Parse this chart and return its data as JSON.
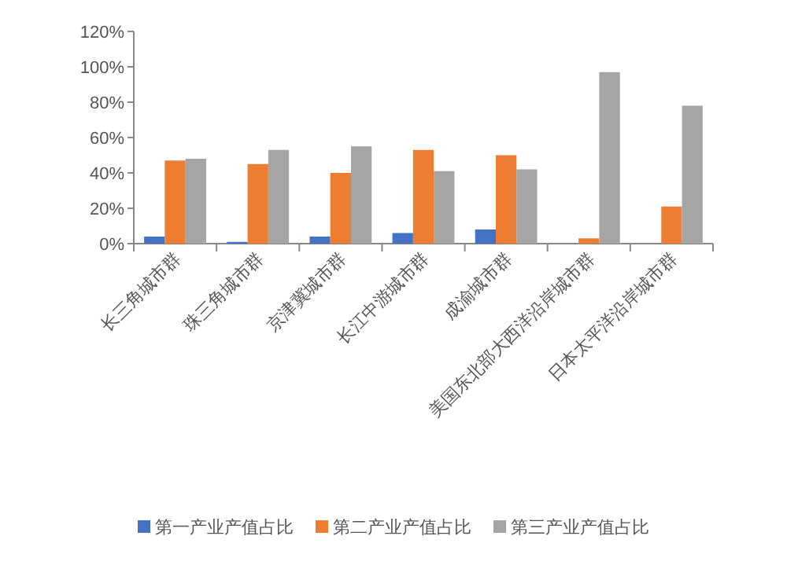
{
  "chart_data": {
    "type": "bar",
    "categories": [
      "长三角城市群",
      "珠三角城市群",
      "京津冀城市群",
      "长江中游城市群",
      "成渝城市群",
      "美国东北部大西洋沿岸城市群",
      "日本太平洋沿岸城市群"
    ],
    "series": [
      {
        "name": "第一产业产值占比",
        "color": "#4472c4",
        "values": [
          4,
          1,
          4,
          6,
          8,
          null,
          null
        ]
      },
      {
        "name": "第二产业产值占比",
        "color": "#ed7d31",
        "values": [
          47,
          45,
          40,
          53,
          50,
          3,
          21
        ]
      },
      {
        "name": "第三产业产值占比",
        "color": "#a5a5a5",
        "values": [
          48,
          53,
          55,
          41,
          42,
          97,
          78
        ]
      }
    ],
    "ylim": [
      0,
      120
    ],
    "yticks": [
      {
        "value": 0,
        "label": "0%"
      },
      {
        "value": 20,
        "label": "20%"
      },
      {
        "value": 40,
        "label": "40%"
      },
      {
        "value": 60,
        "label": "60%"
      },
      {
        "value": 80,
        "label": "80%"
      },
      {
        "value": 100,
        "label": "100%"
      },
      {
        "value": 120,
        "label": "120%"
      }
    ],
    "grid": false,
    "legend": "bottom"
  }
}
